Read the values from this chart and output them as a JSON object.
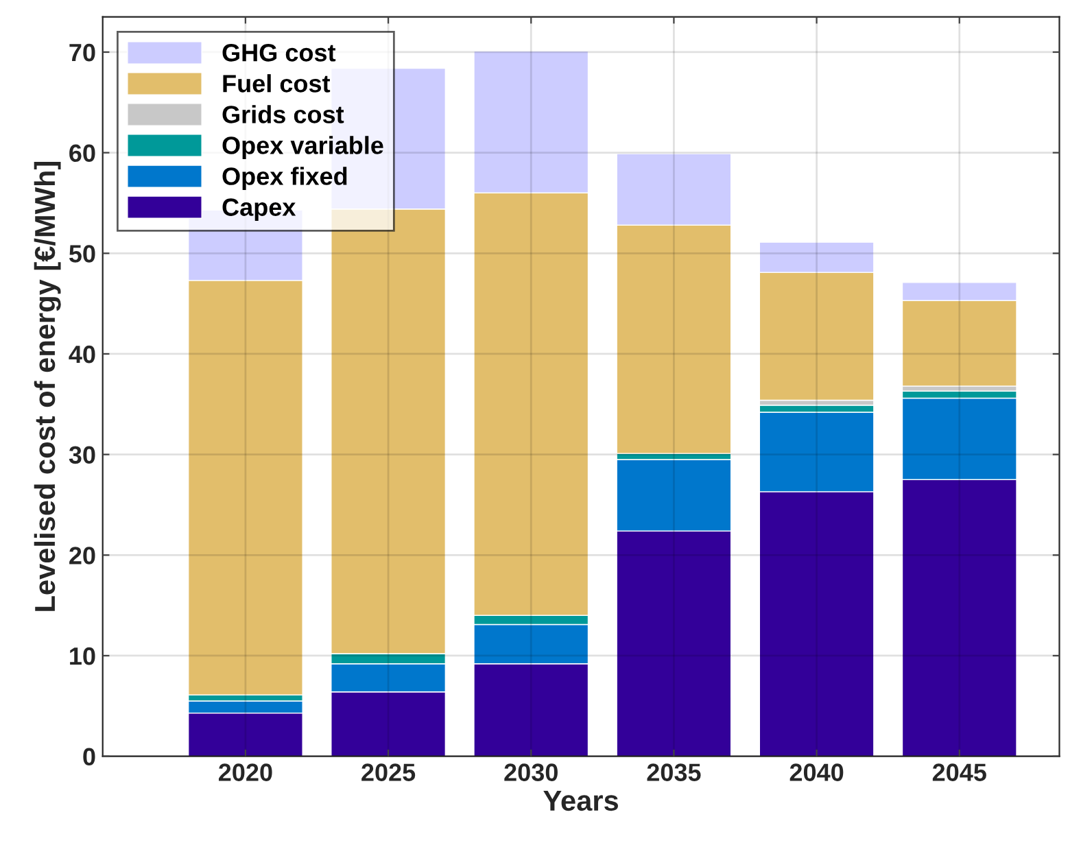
{
  "chart_data": {
    "type": "bar",
    "stacked": true,
    "categories": [
      "2020",
      "2025",
      "2030",
      "2035",
      "2040",
      "2045"
    ],
    "xlabel": "Years",
    "ylabel": "Levelised cost of energy [€/MWh]",
    "ylim": [
      0,
      73.5
    ],
    "yticks": [
      0,
      10,
      20,
      30,
      40,
      50,
      60,
      70
    ],
    "grid": true,
    "legend": "top left",
    "series": [
      {
        "name": "Capex",
        "color": "#330099",
        "values": [
          4.3,
          6.4,
          9.2,
          22.4,
          26.3,
          27.5
        ]
      },
      {
        "name": "Opex fixed",
        "color": "#0077cc",
        "values": [
          1.2,
          2.8,
          3.9,
          7.1,
          7.9,
          8.1
        ]
      },
      {
        "name": "Opex variable",
        "color": "#009999",
        "values": [
          0.6,
          1.0,
          0.9,
          0.6,
          0.7,
          0.7
        ]
      },
      {
        "name": "Grids cost",
        "color": "#c8c8c8",
        "values": [
          0,
          0,
          0,
          0,
          0.5,
          0.5
        ]
      },
      {
        "name": "Fuel cost",
        "color": "#e2be6b",
        "values": [
          41.2,
          44.2,
          42.0,
          22.7,
          12.7,
          8.5
        ]
      },
      {
        "name": "GHG cost",
        "color": "#ccccff",
        "values": [
          7.0,
          14.0,
          14.1,
          7.1,
          3.0,
          1.8
        ]
      }
    ]
  }
}
